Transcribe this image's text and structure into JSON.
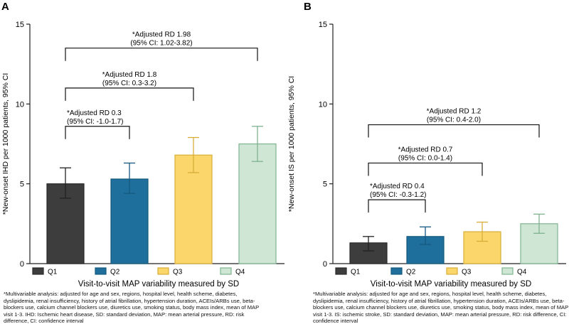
{
  "chart_data": [
    {
      "panel_label": "A",
      "type": "bar",
      "categories": [
        "Q1",
        "Q2",
        "Q3",
        "Q4"
      ],
      "values": [
        5.0,
        5.3,
        6.8,
        7.5
      ],
      "error_low": [
        4.1,
        4.4,
        5.7,
        6.4
      ],
      "error_high": [
        6.0,
        6.3,
        7.9,
        8.6
      ],
      "colors": [
        "#3d3d3d",
        "#1f6f9c",
        "#fbd66a",
        "#cfe6d4"
      ],
      "edge_colors": [
        "#2a2a2a",
        "#15597f",
        "#d7ad3a",
        "#7fb390"
      ],
      "xlabel": "Visit-to-visit MAP variability measured by SD",
      "ylabel": "*New-onset IHD per 1000 patients, 95% CI",
      "ylim": [
        0,
        15
      ],
      "yticks": [
        0,
        5,
        10,
        15
      ],
      "brackets": [
        {
          "from": 0,
          "to": 3,
          "y": 13.5,
          "line1": "*Adjusted RD 1.98",
          "line2": "(95% CI: 1.02-3.82)"
        },
        {
          "from": 0,
          "to": 2,
          "y": 11.0,
          "line1": "*Adjusted RD 1.8",
          "line2": "(95% CI: 0.3-3.2)"
        },
        {
          "from": 0,
          "to": 1,
          "y": 8.6,
          "line1": "*Adjusted RD 0.3",
          "line2": "(95% CI: -1.0-1.7)"
        }
      ],
      "legend": [
        "Q1",
        "Q2",
        "Q3",
        "Q4"
      ],
      "footnote": "*Multivariable analysis: adjusted for age and sex, regions, hospital level, health scheme, diabetes, dyslipidemia, renal insufficiency, history of atrial fibrillation, hypertension duration, ACEIs/ARBs use, beta-blockers use, calcium channel blockers use, diuretics use, smoking status, body mass index, mean of MAP visit 1-3. IHD: Ischemic heart disease, SD: standard deviation, MAP: mean arterial pressure, RD: risk difference, CI: confidence interval"
    },
    {
      "panel_label": "B",
      "type": "bar",
      "categories": [
        "Q1",
        "Q2",
        "Q3",
        "Q4"
      ],
      "values": [
        1.3,
        1.7,
        2.0,
        2.5
      ],
      "error_low": [
        0.8,
        1.2,
        1.4,
        1.9
      ],
      "error_high": [
        1.7,
        2.3,
        2.6,
        3.1
      ],
      "colors": [
        "#3d3d3d",
        "#1f6f9c",
        "#fbd66a",
        "#cfe6d4"
      ],
      "edge_colors": [
        "#2a2a2a",
        "#15597f",
        "#d7ad3a",
        "#7fb390"
      ],
      "xlabel": "Visit-to-visit MAP variability measured by SD",
      "ylabel": "*New-onset IS per 1000 patients, 95% CI",
      "ylim": [
        0,
        15
      ],
      "yticks": [
        0,
        5,
        10,
        15
      ],
      "brackets": [
        {
          "from": 0,
          "to": 3,
          "y": 8.7,
          "line1": "*Adjusted RD 1.2",
          "line2": "(95% CI: 0.4-2.0)"
        },
        {
          "from": 0,
          "to": 2,
          "y": 6.3,
          "line1": "*Adjusted RD 0.7",
          "line2": "(95% CI: 0.0-1.4)"
        },
        {
          "from": 0,
          "to": 1,
          "y": 4.0,
          "line1": "*Adjusted RD 0.4",
          "line2": "(95% CI: -0.3-1.2)"
        }
      ],
      "legend": [
        "Q1",
        "Q2",
        "Q3",
        "Q4"
      ],
      "footnote": "*Multivariable analysis: adjusted for age and sex, regions, hospital level, health scheme, diabetes, dyslipidemia, renal insufficiency, history of atrial fibrillation, hypertension duration, ACEIs/ARBs use, beta-blockers use, calcium channel blockers use, diuretics use, smoking status, body mass index, mean of MAP visit 1-3. IS: ischemic stroke, SD: standard deviation, MAP: mean arterial pressure, RD: risk difference, CI: confidence interval"
    }
  ]
}
